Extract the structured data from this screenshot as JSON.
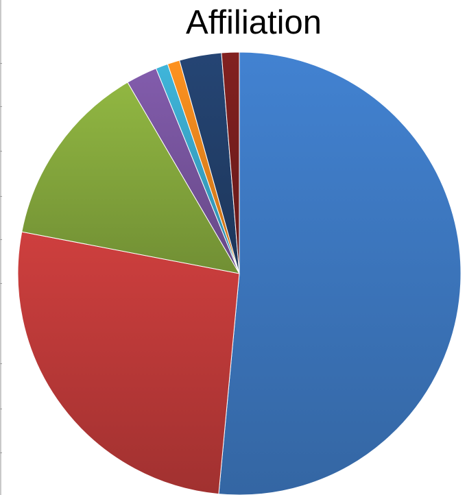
{
  "chart_data": {
    "type": "pie",
    "title": "Affiliation",
    "start_angle_deg": 0,
    "direction": "clockwise",
    "slices": [
      {
        "value": 52.0,
        "color": "#3f7cc7"
      },
      {
        "value": 26.8,
        "color": "#c43c3b"
      },
      {
        "value": 13.7,
        "color": "#8aae3f"
      },
      {
        "value": 2.3,
        "color": "#7c58a4"
      },
      {
        "value": 0.9,
        "color": "#3cacd0"
      },
      {
        "value": 0.9,
        "color": "#f28b1e"
      },
      {
        "value": 3.1,
        "color": "#23426e"
      },
      {
        "value": 1.3,
        "color": "#7c1f1e"
      }
    ]
  }
}
